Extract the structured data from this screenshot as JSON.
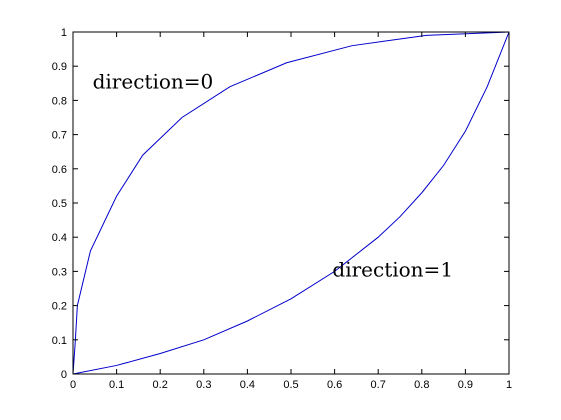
{
  "chart_data": {
    "type": "line",
    "title": "",
    "xlabel": "",
    "ylabel": "",
    "xlim": [
      0,
      1
    ],
    "ylim": [
      0,
      1
    ],
    "grid": false,
    "legend": "none",
    "x_ticks": [
      "0",
      "0.1",
      "0.2",
      "0.3",
      "0.4",
      "0.5",
      "0.6",
      "0.7",
      "0.8",
      "0.9",
      "1"
    ],
    "y_ticks": [
      "0",
      "0.1",
      "0.2",
      "0.3",
      "0.4",
      "0.5",
      "0.6",
      "0.7",
      "0.8",
      "0.9",
      "1"
    ],
    "series": [
      {
        "x": [
          0,
          0.005,
          0.01,
          0.04,
          0.1,
          0.16,
          0.25,
          0.36,
          0.49,
          0.64,
          0.81,
          1
        ],
        "y": [
          0,
          0.09,
          0.2,
          0.36,
          0.52,
          0.64,
          0.75,
          0.84,
          0.91,
          0.96,
          0.99,
          1
        ]
      },
      {
        "x": [
          0,
          0.1,
          0.2,
          0.3,
          0.4,
          0.5,
          0.6,
          0.7,
          0.75,
          0.8,
          0.85,
          0.9,
          0.95,
          1
        ],
        "y": [
          0,
          0.025,
          0.06,
          0.1,
          0.155,
          0.22,
          0.3,
          0.4,
          0.46,
          0.53,
          0.61,
          0.71,
          0.84,
          1
        ]
      }
    ],
    "annotations": [
      {
        "text": "direction=0",
        "x": 0.045,
        "y": 0.835
      },
      {
        "text": "direction=1",
        "x": 0.595,
        "y": 0.285
      }
    ],
    "colors": {
      "line": "#0000cc",
      "axes": "#000000",
      "background": "#ffffff"
    }
  }
}
